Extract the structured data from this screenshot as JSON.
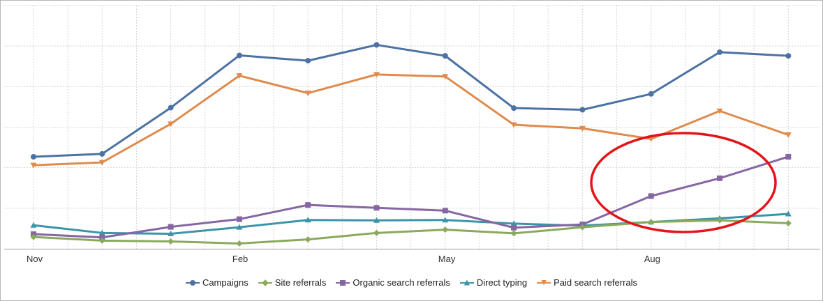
{
  "chart_data": {
    "type": "line",
    "x_categories": [
      "Nov",
      "",
      "",
      "Feb",
      "",
      "",
      "May",
      "",
      "",
      "Aug",
      "",
      ""
    ],
    "x_tick_labels": [
      "Nov",
      "Feb",
      "May",
      "Aug"
    ],
    "ylim": [
      0,
      6
    ],
    "y_gridlines": [
      0,
      1,
      2,
      3,
      4,
      5,
      6
    ],
    "grid": true,
    "legend_placement": "bottom",
    "series": [
      {
        "name": "Campaigns",
        "color": "#4c72a4",
        "marker": "circle",
        "values": [
          2.27,
          2.34,
          3.48,
          4.77,
          4.64,
          5.03,
          4.76,
          3.47,
          3.43,
          3.82,
          4.85,
          4.76
        ]
      },
      {
        "name": "Site referrals",
        "color": "#8aaa5b",
        "marker": "diamond",
        "values": [
          0.29,
          0.2,
          0.18,
          0.13,
          0.23,
          0.39,
          0.47,
          0.38,
          0.53,
          0.66,
          0.7,
          0.63
        ]
      },
      {
        "name": "Organic search referrals",
        "color": "#8566a3",
        "marker": "square",
        "values": [
          0.36,
          0.28,
          0.54,
          0.73,
          1.08,
          1.01,
          0.94,
          0.52,
          0.6,
          1.3,
          1.74,
          2.27
        ]
      },
      {
        "name": "Direct typing",
        "color": "#3c94a8",
        "marker": "triangle-up",
        "values": [
          0.58,
          0.39,
          0.37,
          0.53,
          0.71,
          0.7,
          0.71,
          0.62,
          0.57,
          0.66,
          0.75,
          0.86
        ]
      },
      {
        "name": "Paid search referrals",
        "color": "#e08b4e",
        "marker": "triangle-down",
        "values": [
          2.06,
          2.13,
          3.08,
          4.27,
          3.84,
          4.3,
          4.25,
          3.06,
          2.97,
          2.71,
          3.4,
          2.81
        ]
      }
    ]
  },
  "annotation": {
    "type": "ellipse",
    "color": "#e3151a"
  }
}
